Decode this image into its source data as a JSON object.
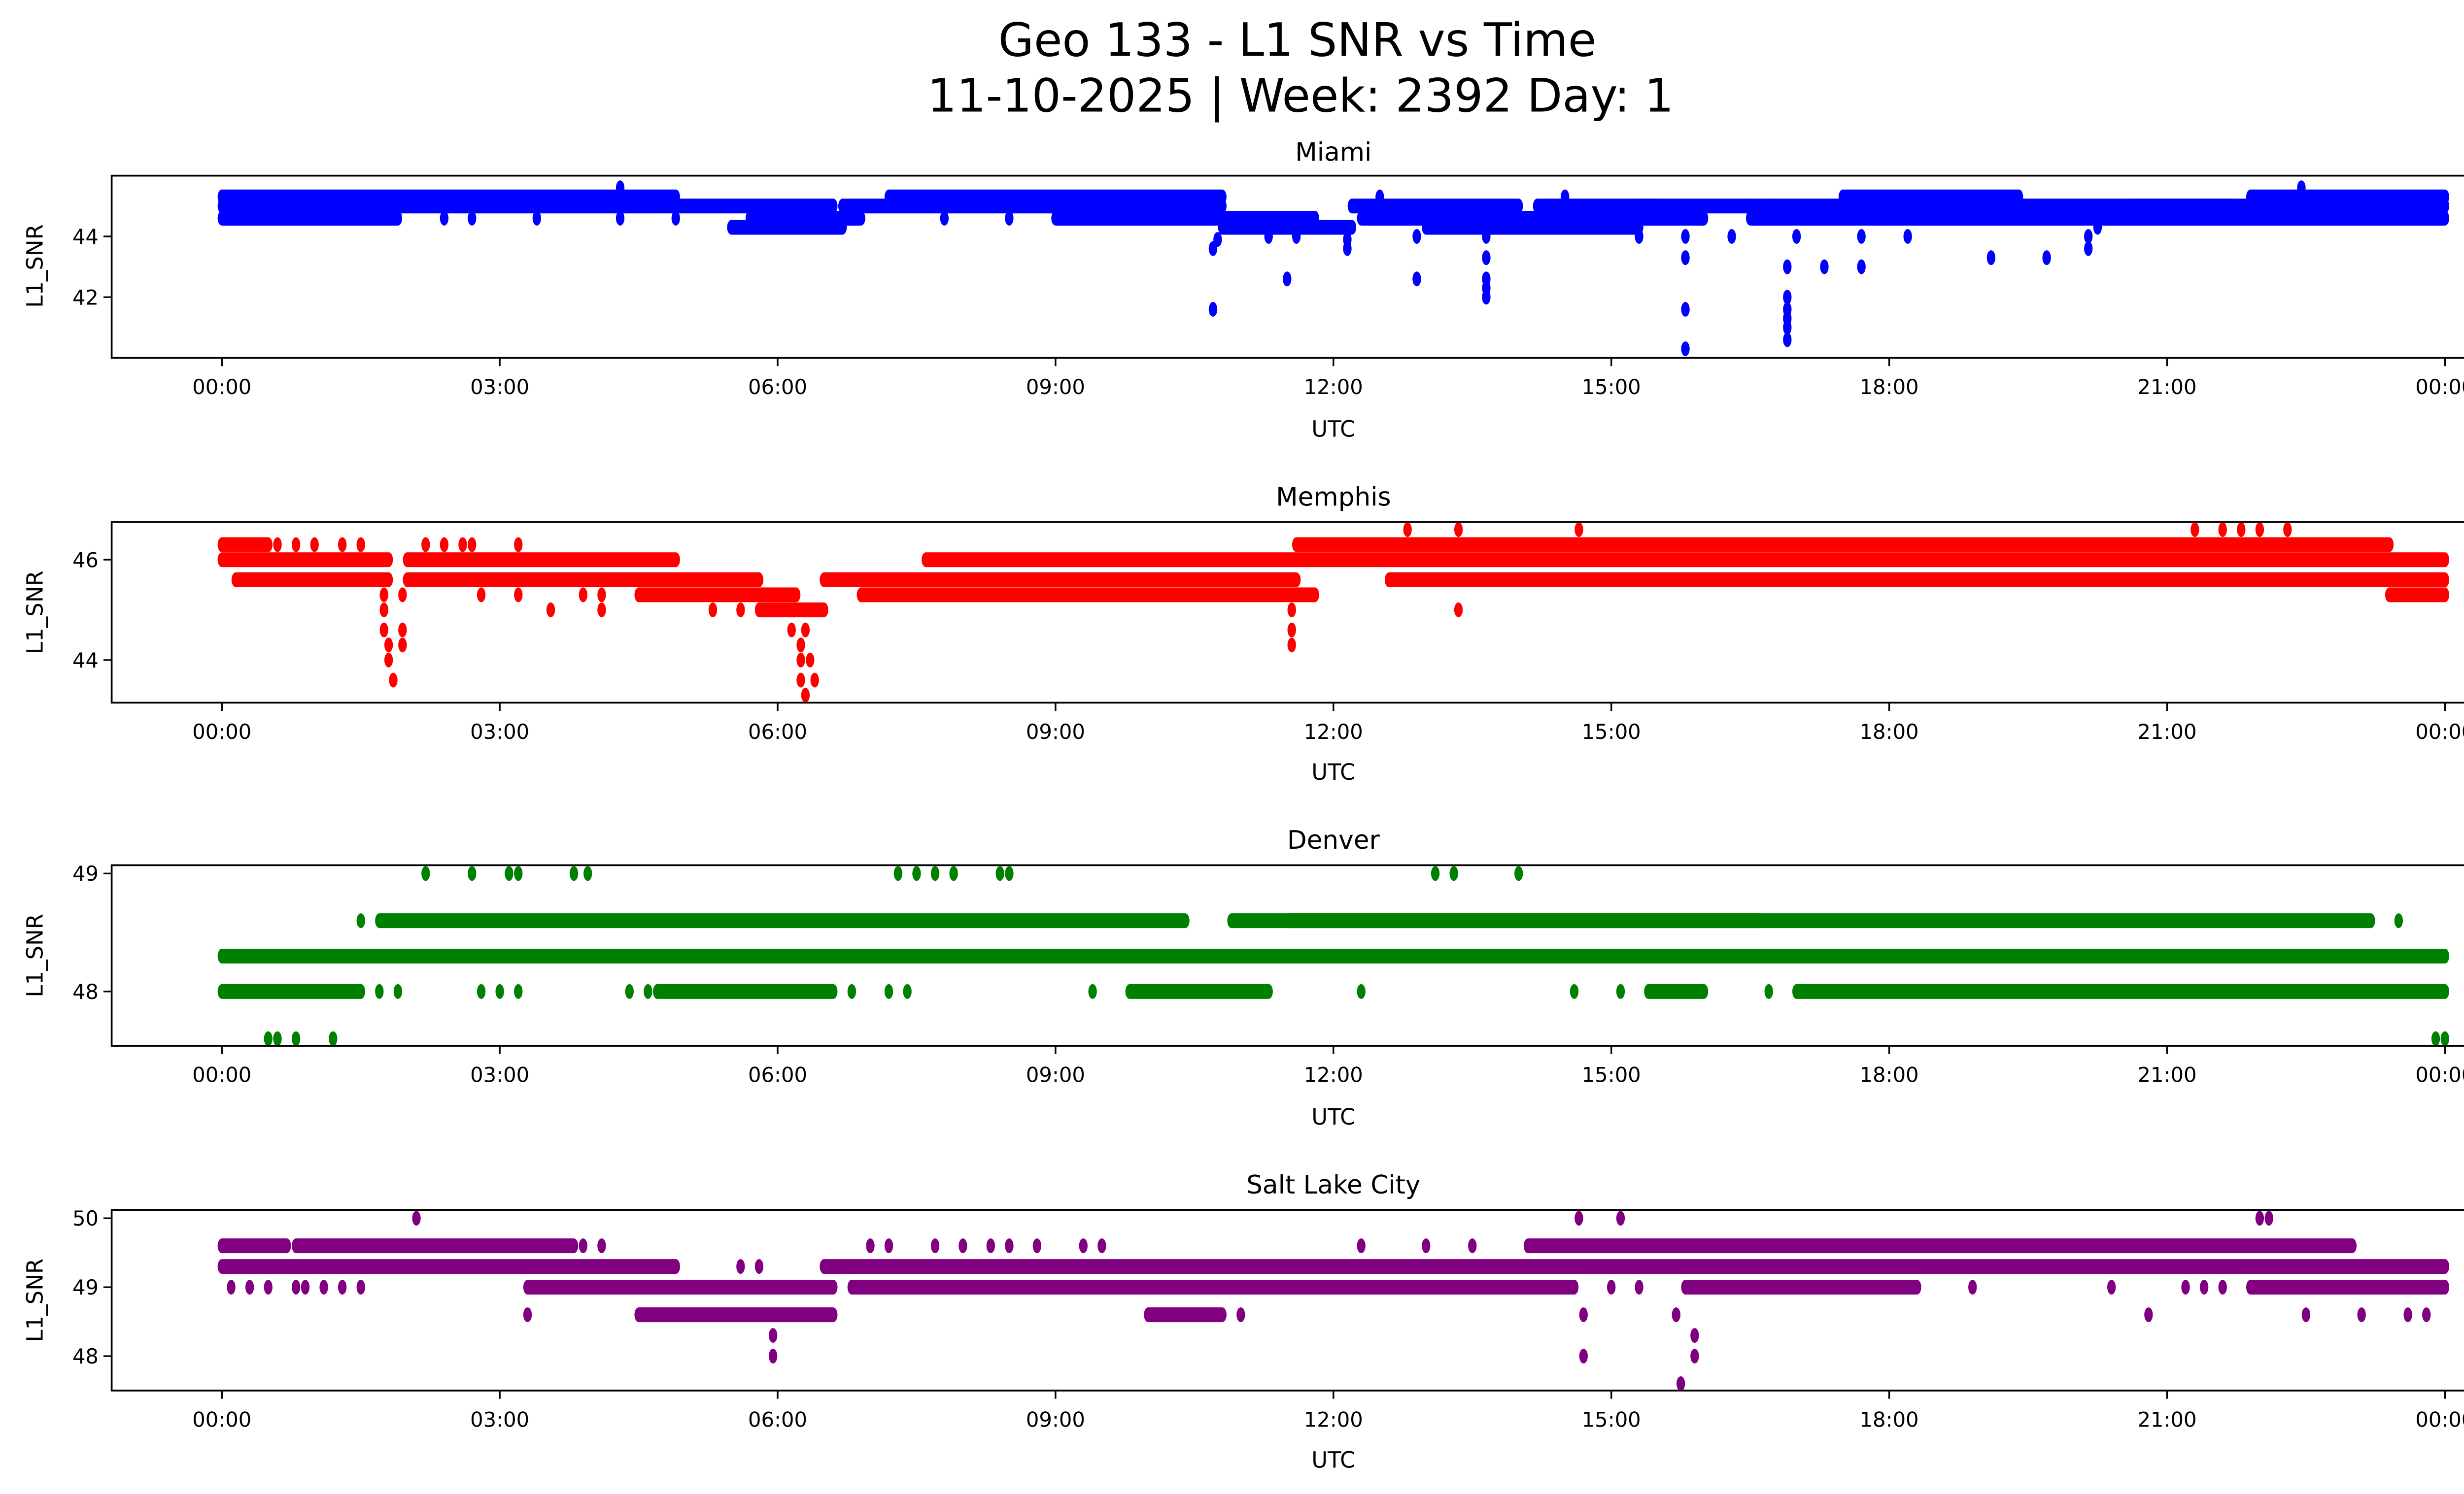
{
  "figure": {
    "title_line1": "Geo 133 - L1 SNR vs Time",
    "title_line2": "11-10-2025 | Week: 2392 Day: 1"
  },
  "chart_data": [
    {
      "type": "scatter",
      "title": "Miami",
      "xlabel": "UTC",
      "ylabel": "L1_SNR",
      "color": "#0000ff",
      "x_unit": "hours since 00:00 UTC",
      "xlim": [
        -1.19,
        25.19
      ],
      "ylim": [
        40.0,
        46.0
      ],
      "xticks": [
        0,
        3,
        6,
        9,
        12,
        15,
        18,
        21,
        24
      ],
      "xtick_labels": [
        "00:00",
        "03:00",
        "06:00",
        "09:00",
        "12:00",
        "15:00",
        "18:00",
        "21:00",
        "00:00"
      ],
      "yticks": [
        42,
        44
      ],
      "ytick_labels": [
        "42",
        "44"
      ],
      "bands": [
        [
          0.0,
          4.9,
          45.3
        ],
        [
          0.0,
          4.9,
          45.0
        ],
        [
          0.0,
          1.9,
          44.6
        ],
        [
          4.9,
          5.1,
          45.0
        ],
        [
          5.1,
          6.6,
          45.0
        ],
        [
          5.5,
          6.7,
          44.3
        ],
        [
          5.7,
          6.9,
          44.6
        ],
        [
          6.7,
          10.8,
          45.0
        ],
        [
          7.2,
          10.8,
          45.3
        ],
        [
          9.0,
          10.8,
          44.6
        ],
        [
          10.8,
          11.8,
          44.6
        ],
        [
          10.8,
          12.2,
          44.3
        ],
        [
          12.2,
          14.0,
          45.0
        ],
        [
          12.3,
          16.0,
          44.6
        ],
        [
          13.0,
          15.3,
          44.3
        ],
        [
          14.2,
          15.5,
          45.0
        ],
        [
          15.3,
          16.7,
          45.0
        ],
        [
          16.7,
          21.7,
          45.0
        ],
        [
          16.5,
          21.2,
          44.6
        ],
        [
          17.5,
          19.4,
          45.3
        ],
        [
          20.6,
          24.0,
          45.0
        ],
        [
          21.9,
          24.0,
          45.3
        ],
        [
          20.8,
          24.0,
          44.6
        ]
      ],
      "points": [
        [
          0.05,
          45.3
        ],
        [
          1.9,
          44.6
        ],
        [
          2.4,
          44.6
        ],
        [
          2.7,
          44.6
        ],
        [
          3.4,
          44.6
        ],
        [
          4.3,
          45.6
        ],
        [
          4.3,
          44.6
        ],
        [
          4.9,
          44.6
        ],
        [
          6.3,
          44.3
        ],
        [
          7.8,
          44.6
        ],
        [
          8.5,
          44.6
        ],
        [
          10.7,
          43.6
        ],
        [
          10.75,
          43.9
        ],
        [
          10.7,
          41.6
        ],
        [
          11.3,
          44.0
        ],
        [
          11.5,
          42.6
        ],
        [
          11.6,
          44.0
        ],
        [
          12.15,
          43.9
        ],
        [
          12.15,
          43.6
        ],
        [
          12.5,
          45.3
        ],
        [
          12.9,
          44.0
        ],
        [
          12.9,
          42.6
        ],
        [
          13.65,
          44.0
        ],
        [
          13.65,
          43.3
        ],
        [
          13.65,
          42.6
        ],
        [
          13.65,
          42.3
        ],
        [
          13.65,
          42.0
        ],
        [
          14.2,
          44.3
        ],
        [
          14.5,
          45.3
        ],
        [
          15.3,
          44.0
        ],
        [
          15.8,
          44.0
        ],
        [
          15.8,
          43.3
        ],
        [
          15.8,
          41.6
        ],
        [
          15.8,
          40.3
        ],
        [
          16.3,
          44.0
        ],
        [
          16.45,
          45.0
        ],
        [
          16.9,
          43.0
        ],
        [
          16.9,
          42.0
        ],
        [
          16.9,
          41.6
        ],
        [
          16.9,
          41.3
        ],
        [
          16.9,
          41.0
        ],
        [
          16.9,
          40.6
        ],
        [
          17.0,
          44.0
        ],
        [
          17.3,
          43.0
        ],
        [
          17.7,
          44.0
        ],
        [
          17.7,
          43.0
        ],
        [
          18.2,
          44.0
        ],
        [
          19.1,
          43.3
        ],
        [
          19.7,
          43.3
        ],
        [
          20.15,
          44.0
        ],
        [
          20.15,
          43.6
        ],
        [
          20.25,
          44.3
        ],
        [
          22.45,
          45.6
        ],
        [
          23.7,
          44.6
        ]
      ]
    },
    {
      "type": "scatter",
      "title": "Memphis",
      "xlabel": "UTC",
      "ylabel": "L1_SNR",
      "color": "#ff0000",
      "x_unit": "hours since 00:00 UTC",
      "xlim": [
        -1.19,
        25.19
      ],
      "ylim": [
        43.15,
        46.75
      ],
      "xticks": [
        0,
        3,
        6,
        9,
        12,
        15,
        18,
        21,
        24
      ],
      "xtick_labels": [
        "00:00",
        "03:00",
        "06:00",
        "09:00",
        "12:00",
        "15:00",
        "18:00",
        "21:00",
        "00:00"
      ],
      "yticks": [
        44,
        46
      ],
      "ytick_labels": [
        "44",
        "46"
      ],
      "bands": [
        [
          0.0,
          0.5,
          46.3
        ],
        [
          0.0,
          1.8,
          46.0
        ],
        [
          0.15,
          1.8,
          45.6
        ],
        [
          2.0,
          4.9,
          46.0
        ],
        [
          2.0,
          5.8,
          45.6
        ],
        [
          4.5,
          6.2,
          45.3
        ],
        [
          5.8,
          6.5,
          45.0
        ],
        [
          6.5,
          7.6,
          45.6
        ],
        [
          6.9,
          11.8,
          45.3
        ],
        [
          7.6,
          12.4,
          46.0
        ],
        [
          7.0,
          11.6,
          45.6
        ],
        [
          11.6,
          12.4,
          46.3
        ],
        [
          12.4,
          22.5,
          46.3
        ],
        [
          12.4,
          24.0,
          46.0
        ],
        [
          12.6,
          24.0,
          45.6
        ],
        [
          22.5,
          23.4,
          46.3
        ],
        [
          23.4,
          24.0,
          45.3
        ]
      ],
      "points": [
        [
          0.6,
          46.3
        ],
        [
          0.8,
          46.3
        ],
        [
          1.0,
          46.3
        ],
        [
          1.3,
          46.3
        ],
        [
          1.5,
          46.3
        ],
        [
          1.75,
          45.3
        ],
        [
          1.75,
          45.0
        ],
        [
          1.75,
          44.6
        ],
        [
          1.8,
          44.3
        ],
        [
          1.8,
          44.0
        ],
        [
          1.85,
          43.6
        ],
        [
          1.95,
          45.3
        ],
        [
          1.95,
          44.6
        ],
        [
          1.95,
          44.3
        ],
        [
          2.2,
          46.3
        ],
        [
          2.4,
          46.3
        ],
        [
          2.6,
          46.3
        ],
        [
          2.7,
          46.3
        ],
        [
          2.8,
          45.3
        ],
        [
          3.2,
          46.3
        ],
        [
          3.2,
          45.3
        ],
        [
          3.55,
          45.0
        ],
        [
          3.9,
          45.3
        ],
        [
          4.1,
          45.3
        ],
        [
          4.1,
          45.0
        ],
        [
          5.3,
          45.0
        ],
        [
          5.6,
          45.0
        ],
        [
          6.15,
          44.6
        ],
        [
          6.25,
          44.3
        ],
        [
          6.25,
          44.0
        ],
        [
          6.25,
          43.6
        ],
        [
          6.3,
          43.3
        ],
        [
          6.3,
          44.6
        ],
        [
          6.35,
          44.0
        ],
        [
          6.4,
          43.6
        ],
        [
          11.55,
          45.0
        ],
        [
          11.55,
          44.6
        ],
        [
          11.55,
          44.3
        ],
        [
          12.8,
          46.6
        ],
        [
          13.35,
          46.6
        ],
        [
          13.35,
          45.0
        ],
        [
          14.65,
          46.6
        ],
        [
          21.3,
          46.6
        ],
        [
          21.6,
          46.6
        ],
        [
          21.8,
          46.6
        ],
        [
          22.0,
          46.6
        ],
        [
          22.3,
          46.6
        ]
      ]
    },
    {
      "type": "scatter",
      "title": "Denver",
      "xlabel": "UTC",
      "ylabel": "L1_SNR",
      "color": "#008000",
      "x_unit": "hours since 00:00 UTC",
      "xlim": [
        -1.19,
        25.19
      ],
      "ylim": [
        47.54,
        49.07
      ],
      "xticks": [
        0,
        3,
        6,
        9,
        12,
        15,
        18,
        21,
        24
      ],
      "xtick_labels": [
        "00:00",
        "03:00",
        "06:00",
        "09:00",
        "12:00",
        "15:00",
        "18:00",
        "21:00",
        "00:00"
      ],
      "yticks": [
        48,
        49
      ],
      "ytick_labels": [
        "48",
        "49"
      ],
      "bands": [
        [
          0.0,
          24.0,
          48.3
        ],
        [
          0.0,
          1.5,
          48.0
        ],
        [
          1.7,
          10.4,
          48.6
        ],
        [
          4.7,
          6.6,
          48.0
        ],
        [
          10.9,
          16.6,
          48.6
        ],
        [
          11.5,
          23.2,
          48.6
        ],
        [
          9.8,
          11.3,
          48.0
        ],
        [
          15.4,
          16.0,
          48.0
        ],
        [
          17.0,
          24.0,
          48.0
        ]
      ],
      "points": [
        [
          0.5,
          47.6
        ],
        [
          0.6,
          47.6
        ],
        [
          0.8,
          47.6
        ],
        [
          1.2,
          47.6
        ],
        [
          23.9,
          47.6
        ],
        [
          24.0,
          47.6
        ],
        [
          1.5,
          48.0
        ],
        [
          1.7,
          48.0
        ],
        [
          1.9,
          48.0
        ],
        [
          2.8,
          48.0
        ],
        [
          3.0,
          48.0
        ],
        [
          3.2,
          48.0
        ],
        [
          4.4,
          48.0
        ],
        [
          4.6,
          48.0
        ],
        [
          6.8,
          48.0
        ],
        [
          7.2,
          48.0
        ],
        [
          7.4,
          48.0
        ],
        [
          9.4,
          48.0
        ],
        [
          12.3,
          48.0
        ],
        [
          14.6,
          48.0
        ],
        [
          15.1,
          48.0
        ],
        [
          16.7,
          48.0
        ],
        [
          1.5,
          48.6
        ],
        [
          16.9,
          48.6
        ],
        [
          17.3,
          48.6
        ],
        [
          17.6,
          48.6
        ],
        [
          18.1,
          48.6
        ],
        [
          23.5,
          48.6
        ],
        [
          2.2,
          49.0
        ],
        [
          2.7,
          49.0
        ],
        [
          3.1,
          49.0
        ],
        [
          3.2,
          49.0
        ],
        [
          3.8,
          49.0
        ],
        [
          3.95,
          49.0
        ],
        [
          7.3,
          49.0
        ],
        [
          7.5,
          49.0
        ],
        [
          7.7,
          49.0
        ],
        [
          7.9,
          49.0
        ],
        [
          8.4,
          49.0
        ],
        [
          8.5,
          49.0
        ],
        [
          13.1,
          49.0
        ],
        [
          13.3,
          49.0
        ],
        [
          14.0,
          49.0
        ]
      ]
    },
    {
      "type": "scatter",
      "title": "Salt Lake City",
      "xlabel": "UTC",
      "ylabel": "L1_SNR",
      "color": "#800080",
      "x_unit": "hours since 00:00 UTC",
      "xlim": [
        -1.19,
        25.19
      ],
      "ylim": [
        47.5,
        50.12
      ],
      "xticks": [
        0,
        3,
        6,
        9,
        12,
        15,
        18,
        21,
        24
      ],
      "xtick_labels": [
        "00:00",
        "03:00",
        "06:00",
        "09:00",
        "12:00",
        "15:00",
        "18:00",
        "21:00",
        "00:00"
      ],
      "yticks": [
        48,
        49,
        50
      ],
      "ytick_labels": [
        "48",
        "49",
        "50"
      ],
      "bands": [
        [
          0.0,
          0.7,
          49.6
        ],
        [
          0.8,
          3.8,
          49.6
        ],
        [
          0.0,
          4.9,
          49.3
        ],
        [
          3.3,
          6.6,
          49.0
        ],
        [
          4.5,
          6.6,
          48.6
        ],
        [
          6.5,
          24.0,
          49.3
        ],
        [
          6.8,
          14.6,
          49.0
        ],
        [
          14.1,
          23.0,
          49.6
        ],
        [
          15.8,
          18.3,
          49.0
        ],
        [
          10.0,
          10.8,
          48.6
        ],
        [
          21.9,
          24.0,
          49.0
        ]
      ],
      "points": [
        [
          0.1,
          49.0
        ],
        [
          0.3,
          49.0
        ],
        [
          0.5,
          49.0
        ],
        [
          0.8,
          49.0
        ],
        [
          0.9,
          49.0
        ],
        [
          1.1,
          49.0
        ],
        [
          1.3,
          49.0
        ],
        [
          1.5,
          49.0
        ],
        [
          2.1,
          50.0
        ],
        [
          3.9,
          49.6
        ],
        [
          4.1,
          49.6
        ],
        [
          3.3,
          48.6
        ],
        [
          5.6,
          49.3
        ],
        [
          5.8,
          49.3
        ],
        [
          5.95,
          48.3
        ],
        [
          5.95,
          48.0
        ],
        [
          7.0,
          49.6
        ],
        [
          7.2,
          49.6
        ],
        [
          7.7,
          49.6
        ],
        [
          8.0,
          49.6
        ],
        [
          8.3,
          49.6
        ],
        [
          8.5,
          49.6
        ],
        [
          8.8,
          49.6
        ],
        [
          9.3,
          49.6
        ],
        [
          9.5,
          49.6
        ],
        [
          11.0,
          48.6
        ],
        [
          12.3,
          49.6
        ],
        [
          13.0,
          49.6
        ],
        [
          13.5,
          49.6
        ],
        [
          14.65,
          50.0
        ],
        [
          15.1,
          50.0
        ],
        [
          14.7,
          48.6
        ],
        [
          14.7,
          48.0
        ],
        [
          15.0,
          49.0
        ],
        [
          15.3,
          49.0
        ],
        [
          15.7,
          48.6
        ],
        [
          15.75,
          47.6
        ],
        [
          15.9,
          48.3
        ],
        [
          15.9,
          48.0
        ],
        [
          18.9,
          49.0
        ],
        [
          20.4,
          49.0
        ],
        [
          20.8,
          48.6
        ],
        [
          21.2,
          49.0
        ],
        [
          21.4,
          49.0
        ],
        [
          21.6,
          49.0
        ],
        [
          22.0,
          50.0
        ],
        [
          22.1,
          50.0
        ],
        [
          22.5,
          48.6
        ],
        [
          23.1,
          48.6
        ],
        [
          23.6,
          48.6
        ],
        [
          23.8,
          48.6
        ]
      ]
    }
  ]
}
